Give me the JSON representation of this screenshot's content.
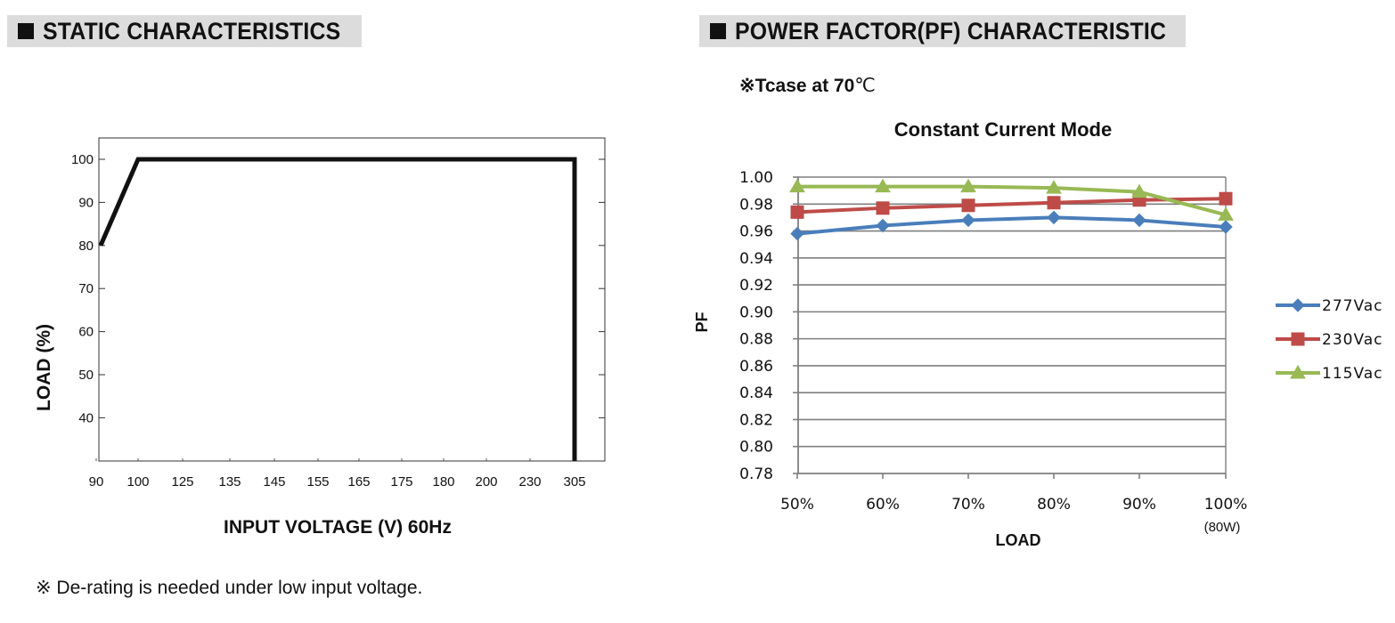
{
  "headers": {
    "left": "STATIC CHARACTERISTICS",
    "right": "POWER FACTOR(PF) CHARACTERISTIC"
  },
  "tcase_note": {
    "prefix": "※",
    "text": "Tcase at 70",
    "unit": "℃"
  },
  "derating_note": "※ De-rating is needed under low input voltage.",
  "colors": {
    "s277": "#4a7ebb",
    "s230": "#be4b48",
    "s115": "#98b954"
  },
  "chart_data": [
    {
      "type": "line",
      "xlabel": "INPUT VOLTAGE (V) 60Hz",
      "ylabel": "LOAD (%)",
      "categories": [
        "90",
        "100",
        "125",
        "135",
        "145",
        "155",
        "165",
        "175",
        "180",
        "200",
        "230",
        "305"
      ],
      "yticks": [
        "100",
        "90",
        "80",
        "70",
        "60",
        "50",
        "40"
      ],
      "ylim": [
        30,
        105
      ],
      "series": [
        {
          "x": [
            "90",
            "100",
            "305",
            "305"
          ],
          "values": [
            80,
            100,
            100,
            30
          ]
        }
      ]
    },
    {
      "type": "line",
      "title": "Constant Current Mode",
      "xlabel": "LOAD",
      "ylabel": "PF",
      "categories": [
        "50%",
        "60%",
        "70%",
        "80%",
        "90%",
        "100%"
      ],
      "category_note": "(80W)",
      "yticks": [
        "1.00",
        "0.98",
        "0.96",
        "0.94",
        "0.92",
        "0.90",
        "0.88",
        "0.86",
        "0.84",
        "0.82",
        "0.80",
        "0.78"
      ],
      "ylim": [
        0.78,
        1.0
      ],
      "grid": true,
      "legend": "right",
      "series": [
        {
          "name": "277Vac",
          "marker": "diamond",
          "values": [
            0.958,
            0.964,
            0.968,
            0.97,
            0.968,
            0.963
          ]
        },
        {
          "name": "230Vac",
          "marker": "square",
          "values": [
            0.974,
            0.977,
            0.979,
            0.981,
            0.983,
            0.984
          ]
        },
        {
          "name": "115Vac",
          "marker": "triangle",
          "values": [
            0.993,
            0.993,
            0.993,
            0.992,
            0.989,
            0.972
          ]
        }
      ]
    }
  ]
}
